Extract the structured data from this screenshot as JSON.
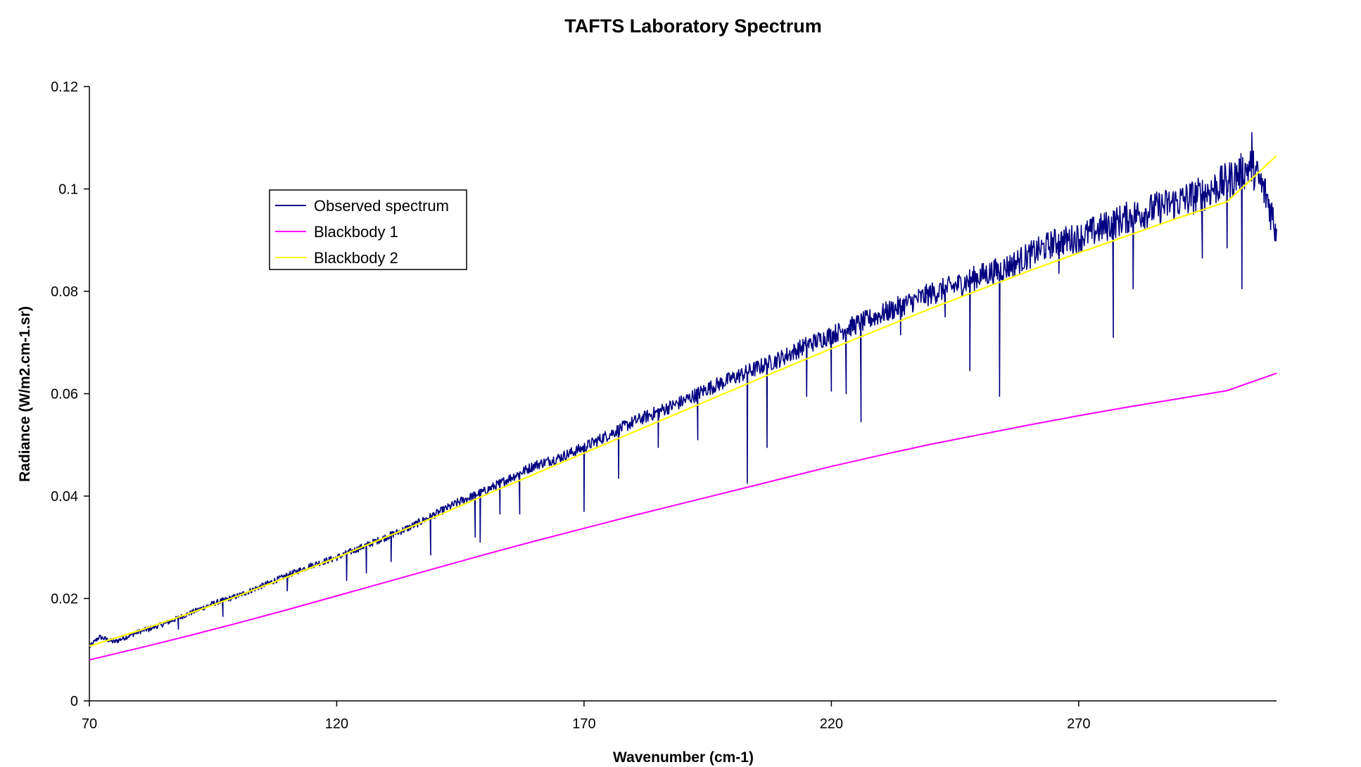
{
  "chart_data": {
    "type": "line",
    "title": "TAFTS Laboratory Spectrum",
    "xlabel": "Wavenumber (cm-1)",
    "ylabel": "Radiance (W/m2.cm-1.sr)",
    "xlim": [
      70,
      310
    ],
    "ylim": [
      0,
      0.12
    ],
    "xticks": [
      70,
      120,
      170,
      220,
      270
    ],
    "xtick_labels": [
      "70",
      "120",
      "170",
      "220",
      "270"
    ],
    "yticks": [
      0,
      0.02,
      0.04,
      0.06,
      0.08,
      0.1,
      0.12
    ],
    "ytick_labels": [
      "0",
      "0.02",
      "0.04",
      "0.06",
      "0.08",
      "0.1",
      "0.12"
    ],
    "grid": false,
    "legend_position": "top-left",
    "series": [
      {
        "name": "Observed spectrum",
        "color": "#000080",
        "x": [
          70,
          72,
          75,
          80,
          85,
          90,
          95,
          100,
          105,
          110,
          115,
          120,
          125,
          130,
          135,
          140,
          145,
          150,
          155,
          160,
          165,
          170,
          175,
          180,
          185,
          190,
          195,
          200,
          205,
          210,
          215,
          220,
          225,
          230,
          235,
          240,
          245,
          250,
          255,
          260,
          265,
          270,
          275,
          280,
          285,
          290,
          295,
          300,
          305,
          308,
          310
        ],
        "y": [
          0.0105,
          0.0125,
          0.0115,
          0.0135,
          0.015,
          0.017,
          0.019,
          0.0205,
          0.0225,
          0.0245,
          0.0265,
          0.028,
          0.03,
          0.032,
          0.034,
          0.0365,
          0.039,
          0.041,
          0.0435,
          0.046,
          0.0475,
          0.0495,
          0.052,
          0.0545,
          0.0565,
          0.0585,
          0.061,
          0.063,
          0.065,
          0.067,
          0.0695,
          0.0715,
          0.0735,
          0.0755,
          0.0775,
          0.0795,
          0.081,
          0.083,
          0.0845,
          0.087,
          0.0895,
          0.0905,
          0.0925,
          0.0945,
          0.096,
          0.0975,
          0.099,
          0.1015,
          0.1045,
          0.0985,
          0.092
        ],
        "absorption_dips": [
          {
            "x": 82,
            "y": 0.0135
          },
          {
            "x": 88,
            "y": 0.014
          },
          {
            "x": 97,
            "y": 0.0165
          },
          {
            "x": 110,
            "y": 0.0215
          },
          {
            "x": 122,
            "y": 0.0235
          },
          {
            "x": 126,
            "y": 0.025
          },
          {
            "x": 131,
            "y": 0.0272
          },
          {
            "x": 139,
            "y": 0.0285
          },
          {
            "x": 148,
            "y": 0.032
          },
          {
            "x": 149,
            "y": 0.031
          },
          {
            "x": 153,
            "y": 0.0365
          },
          {
            "x": 157,
            "y": 0.0365
          },
          {
            "x": 170,
            "y": 0.037
          },
          {
            "x": 177,
            "y": 0.0435
          },
          {
            "x": 185,
            "y": 0.0495
          },
          {
            "x": 193,
            "y": 0.051
          },
          {
            "x": 203,
            "y": 0.0425
          },
          {
            "x": 207,
            "y": 0.0495
          },
          {
            "x": 215,
            "y": 0.0595
          },
          {
            "x": 220,
            "y": 0.0605
          },
          {
            "x": 223,
            "y": 0.06
          },
          {
            "x": 226,
            "y": 0.0545
          },
          {
            "x": 234,
            "y": 0.0715
          },
          {
            "x": 243,
            "y": 0.075
          },
          {
            "x": 248,
            "y": 0.0645
          },
          {
            "x": 254,
            "y": 0.0595
          },
          {
            "x": 266,
            "y": 0.0835
          },
          {
            "x": 277,
            "y": 0.071
          },
          {
            "x": 281,
            "y": 0.0805
          },
          {
            "x": 295,
            "y": 0.0865
          },
          {
            "x": 300,
            "y": 0.0885
          },
          {
            "x": 303,
            "y": 0.0805
          },
          {
            "x": 305,
            "y": 0.111
          }
        ]
      },
      {
        "name": "Blackbody 1",
        "color": "#FF00FF",
        "x": [
          70,
          80,
          90,
          100,
          110,
          120,
          130,
          140,
          150,
          160,
          170,
          180,
          190,
          200,
          210,
          220,
          230,
          240,
          250,
          260,
          270,
          280,
          290,
          300,
          310
        ],
        "y": [
          0.008,
          0.0103,
          0.0127,
          0.0152,
          0.0178,
          0.0205,
          0.0232,
          0.0259,
          0.0286,
          0.0312,
          0.0337,
          0.0362,
          0.0386,
          0.041,
          0.0434,
          0.0458,
          0.048,
          0.0501,
          0.052,
          0.0539,
          0.0557,
          0.0574,
          0.059,
          0.0606,
          0.064
        ]
      },
      {
        "name": "Blackbody 2",
        "color": "#FFFF00",
        "x": [
          70,
          80,
          90,
          100,
          110,
          120,
          130,
          140,
          150,
          160,
          170,
          180,
          190,
          200,
          210,
          220,
          230,
          240,
          250,
          260,
          270,
          280,
          290,
          300,
          310
        ],
        "y": [
          0.0107,
          0.0137,
          0.017,
          0.0205,
          0.0242,
          0.028,
          0.032,
          0.036,
          0.0402,
          0.0443,
          0.0484,
          0.0525,
          0.0566,
          0.0607,
          0.0648,
          0.0688,
          0.0727,
          0.0766,
          0.0803,
          0.084,
          0.0875,
          0.0909,
          0.0943,
          0.0975,
          0.1065
        ]
      }
    ]
  }
}
